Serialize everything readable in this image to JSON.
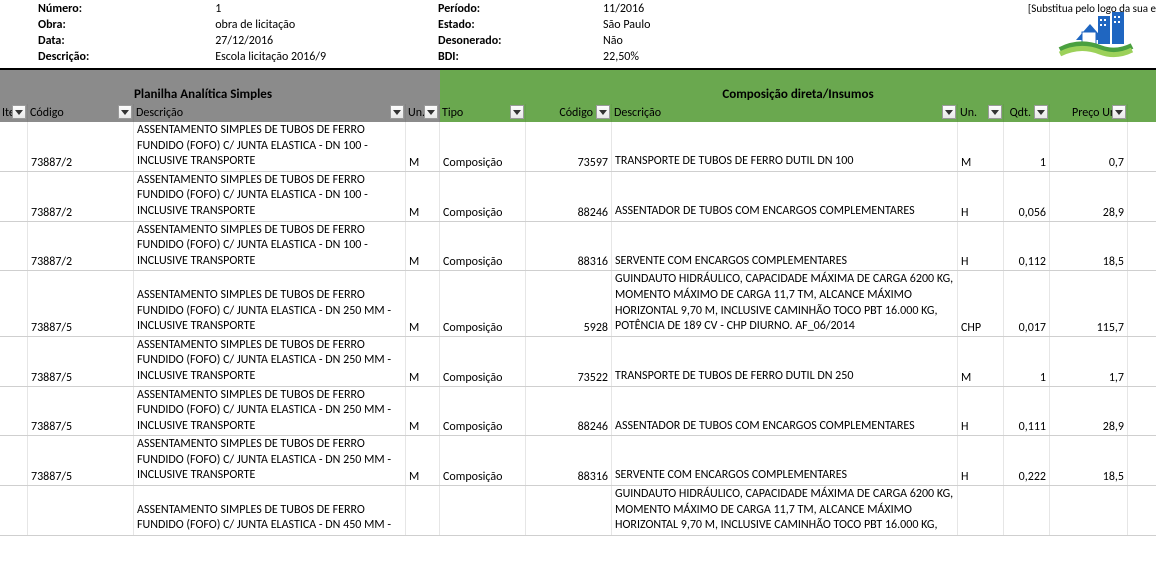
{
  "header": {
    "left": [
      {
        "label": "Número:",
        "value": "1"
      },
      {
        "label": "Obra:",
        "value": "obra de licitação"
      },
      {
        "label": "Data:",
        "value": "27/12/2016"
      },
      {
        "label": "Descrição:",
        "value": "Escola licitação 2016/9"
      }
    ],
    "mid": [
      {
        "label": "Período:",
        "value": "11/2016"
      },
      {
        "label": "Estado:",
        "value": "São Paulo"
      },
      {
        "label": "Desonerado:",
        "value": "Não"
      },
      {
        "label": "BDI:",
        "value": "22,50%"
      }
    ],
    "logo_text": "[Substitua pelo logo da sua e"
  },
  "bands": {
    "left_title": "Planilha Analítica Simples",
    "right_title": "Composição direta/Insumos"
  },
  "columns": {
    "left": [
      {
        "key": "item",
        "label": "Item",
        "class": "c-item"
      },
      {
        "key": "cod1",
        "label": "Código",
        "class": "c-cod1"
      },
      {
        "key": "desc1",
        "label": "Descrição",
        "class": "c-desc1"
      },
      {
        "key": "un1",
        "label": "Un.",
        "class": "c-un1"
      }
    ],
    "right": [
      {
        "key": "tipo",
        "label": "Tipo",
        "class": "c-tipo"
      },
      {
        "key": "cod2",
        "label": "Código",
        "class": "c-cod2"
      },
      {
        "key": "desc2",
        "label": "Descrição",
        "class": "c-desc2"
      },
      {
        "key": "un2",
        "label": "Un.",
        "class": "c-un2"
      },
      {
        "key": "qdt",
        "label": "Qdt.",
        "class": "c-qdt"
      },
      {
        "key": "preco",
        "label": "Preço Unit",
        "class": "c-preco"
      }
    ]
  },
  "rows": [
    {
      "item": "",
      "cod1": "73887/2",
      "desc1": "ASSENTAMENTO SIMPLES DE TUBOS DE FERRO FUNDIDO (FOFO) C/ JUNTA ELASTICA - DN 100 - INCLUSIVE TRANSPORTE",
      "un1": "M",
      "tipo": "Composição",
      "cod2": "73597",
      "desc2": "TRANSPORTE DE TUBOS DE FERRO DUTIL DN 100",
      "un2": "M",
      "qdt": "1",
      "preco": "0,7"
    },
    {
      "item": "",
      "cod1": "73887/2",
      "desc1": "ASSENTAMENTO SIMPLES DE TUBOS DE FERRO FUNDIDO (FOFO) C/ JUNTA ELASTICA - DN 100 - INCLUSIVE TRANSPORTE",
      "un1": "M",
      "tipo": "Composição",
      "cod2": "88246",
      "desc2": "ASSENTADOR DE TUBOS COM ENCARGOS COMPLEMENTARES",
      "un2": "H",
      "qdt": "0,056",
      "preco": "28,9"
    },
    {
      "item": "",
      "cod1": "73887/2",
      "desc1": "ASSENTAMENTO SIMPLES DE TUBOS DE FERRO FUNDIDO (FOFO) C/ JUNTA ELASTICA - DN 100 - INCLUSIVE TRANSPORTE",
      "un1": "M",
      "tipo": "Composição",
      "cod2": "88316",
      "desc2": "SERVENTE COM ENCARGOS COMPLEMENTARES",
      "un2": "H",
      "qdt": "0,112",
      "preco": "18,5"
    },
    {
      "item": "",
      "cod1": "73887/5",
      "desc1": "ASSENTAMENTO SIMPLES DE TUBOS DE FERRO FUNDIDO (FOFO) C/ JUNTA ELASTICA - DN 250 MM - INCLUSIVE TRANSPORTE",
      "un1": "M",
      "tipo": "Composição",
      "cod2": "5928",
      "desc2": "GUINDAUTO HIDRÁULICO, CAPACIDADE MÁXIMA DE CARGA 6200 KG, MOMENTO MÁXIMO DE CARGA 11,7 TM, ALCANCE MÁXIMO HORIZONTAL 9,70 M, INCLUSIVE CAMINHÃO TOCO PBT 16.000 KG, POTÊNCIA DE 189 CV - CHP DIURNO. AF_06/2014",
      "un2": "CHP",
      "qdt": "0,017",
      "preco": "115,7"
    },
    {
      "item": "",
      "cod1": "73887/5",
      "desc1": "ASSENTAMENTO SIMPLES DE TUBOS DE FERRO FUNDIDO (FOFO) C/ JUNTA ELASTICA - DN 250 MM - INCLUSIVE TRANSPORTE",
      "un1": "M",
      "tipo": "Composição",
      "cod2": "73522",
      "desc2": "TRANSPORTE DE TUBOS DE FERRO DUTIL DN 250",
      "un2": "M",
      "qdt": "1",
      "preco": "1,7"
    },
    {
      "item": "",
      "cod1": "73887/5",
      "desc1": "ASSENTAMENTO SIMPLES DE TUBOS DE FERRO FUNDIDO (FOFO) C/ JUNTA ELASTICA - DN 250 MM - INCLUSIVE TRANSPORTE",
      "un1": "M",
      "tipo": "Composição",
      "cod2": "88246",
      "desc2": "ASSENTADOR DE TUBOS COM ENCARGOS COMPLEMENTARES",
      "un2": "H",
      "qdt": "0,111",
      "preco": "28,9"
    },
    {
      "item": "",
      "cod1": "73887/5",
      "desc1": "ASSENTAMENTO SIMPLES DE TUBOS DE FERRO FUNDIDO (FOFO) C/ JUNTA ELASTICA - DN 250 MM - INCLUSIVE TRANSPORTE",
      "un1": "M",
      "tipo": "Composição",
      "cod2": "88316",
      "desc2": "SERVENTE COM ENCARGOS COMPLEMENTARES",
      "un2": "H",
      "qdt": "0,222",
      "preco": "18,5"
    },
    {
      "item": "",
      "cod1": "",
      "desc1": "ASSENTAMENTO SIMPLES DE TUBOS DE FERRO FUNDIDO (FOFO) C/ JUNTA ELASTICA - DN 450 MM -",
      "un1": "",
      "tipo": "",
      "cod2": "",
      "desc2": "GUINDAUTO HIDRÁULICO, CAPACIDADE MÁXIMA DE CARGA 6200 KG, MOMENTO MÁXIMO DE CARGA 11,7 TM, ALCANCE MÁXIMO HORIZONTAL 9,70 M, INCLUSIVE CAMINHÃO TOCO PBT 16.000 KG,",
      "un2": "",
      "qdt": "",
      "preco": ""
    }
  ],
  "colors": {
    "band_left": "#8b8b8b",
    "band_right": "#6aa84f",
    "grid_line": "#cfcfcf"
  }
}
